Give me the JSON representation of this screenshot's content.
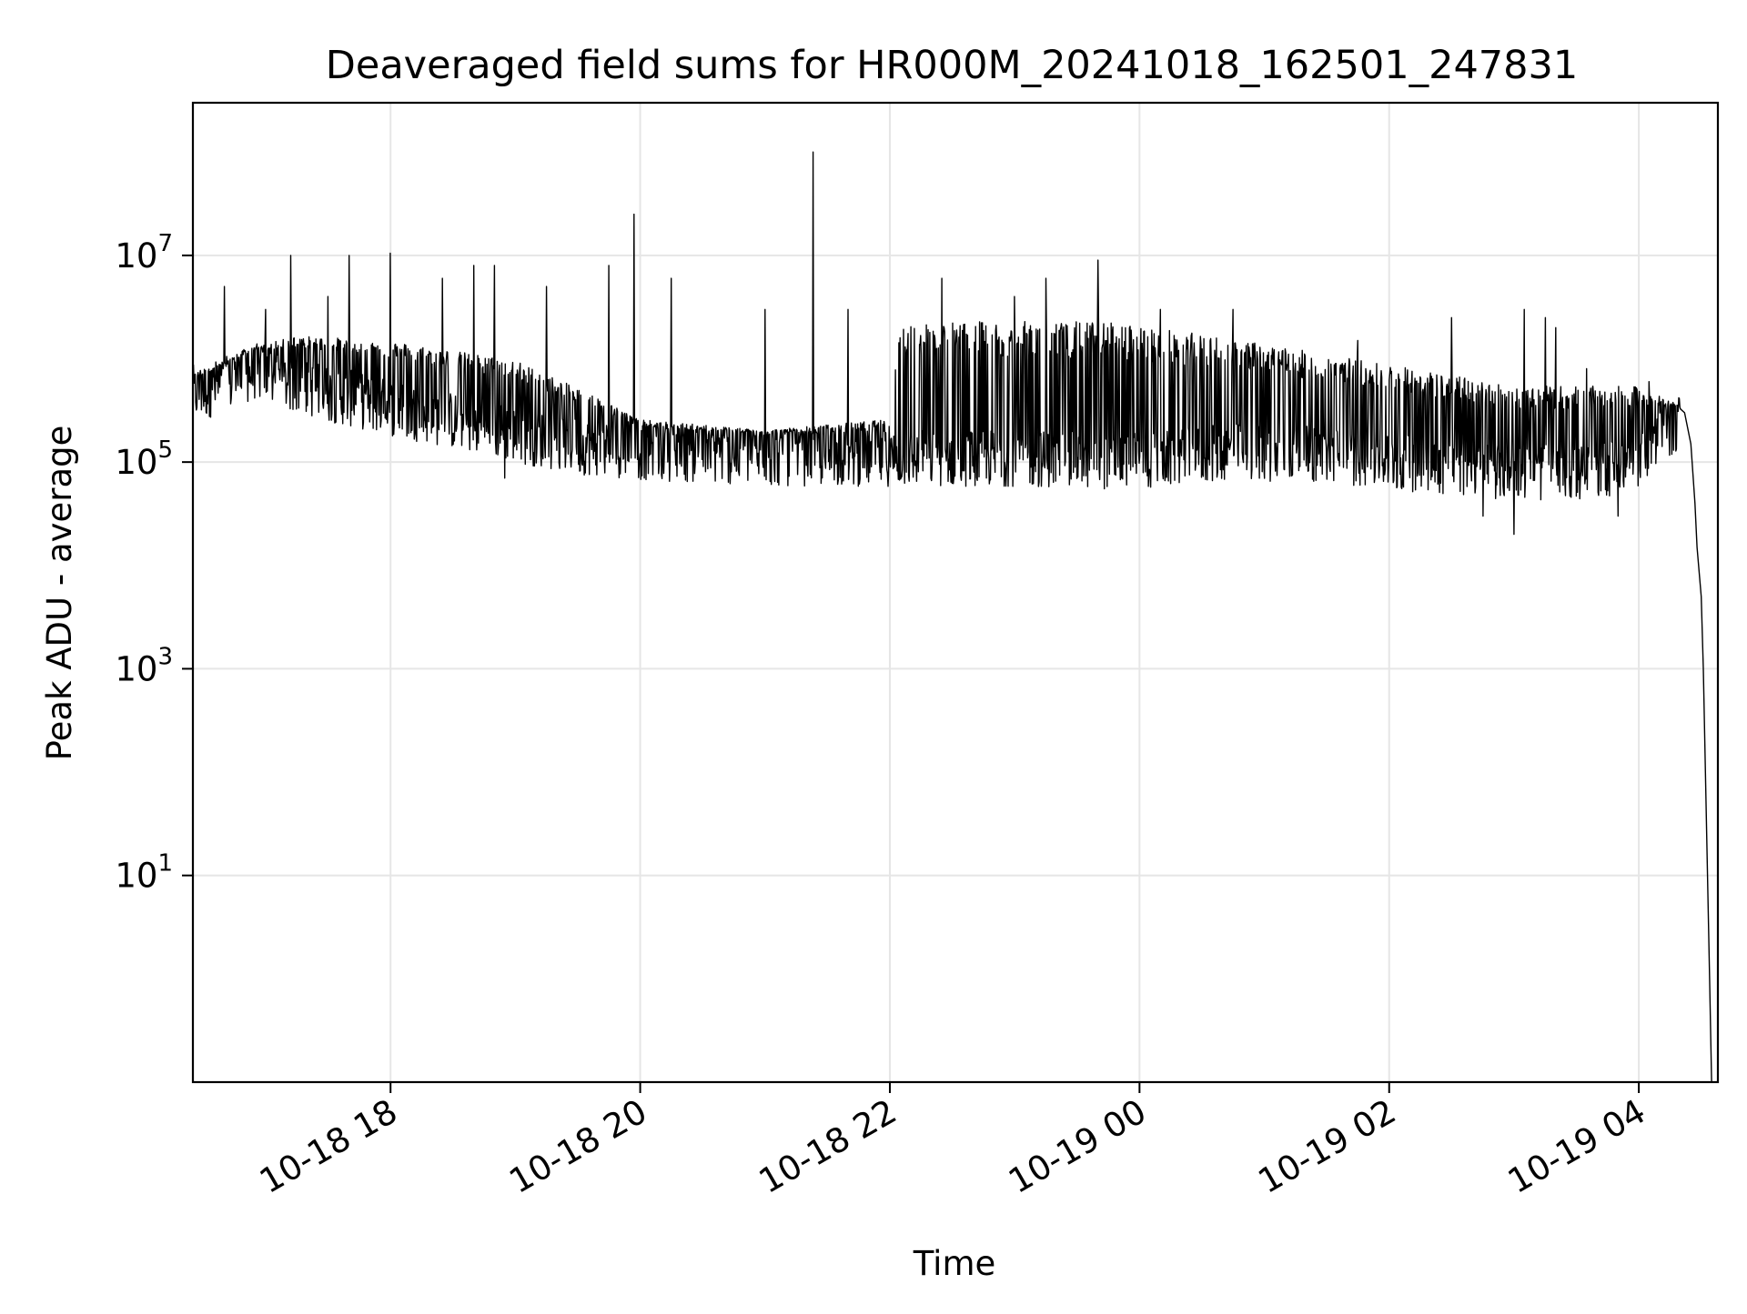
{
  "chart_data": {
    "type": "line",
    "title": "Deaveraged field sums for HR000M_20241018_162501_247831",
    "xlabel": "Time",
    "ylabel": "Peak ADU - average",
    "xlim": [
      "2024-10-18 16:25",
      "2024-10-19 04:38"
    ],
    "ylim": [
      0.1,
      300000000
    ],
    "y_scale": "log",
    "grid": true,
    "x_ticks": [
      {
        "value": "2024-10-18 18:00",
        "label": "10-18 18"
      },
      {
        "value": "2024-10-18 20:00",
        "label": "10-18 20"
      },
      {
        "value": "2024-10-18 22:00",
        "label": "10-18 22"
      },
      {
        "value": "2024-10-19 00:00",
        "label": "10-19 00"
      },
      {
        "value": "2024-10-19 02:00",
        "label": "10-19 02"
      },
      {
        "value": "2024-10-19 04:00",
        "label": "10-19 04"
      }
    ],
    "y_ticks": [
      {
        "value": 10,
        "base": "10",
        "exp": "1"
      },
      {
        "value": 1000,
        "base": "10",
        "exp": "3"
      },
      {
        "value": 100000,
        "base": "10",
        "exp": "5"
      },
      {
        "value": 10000000,
        "base": "10",
        "exp": "7"
      }
    ],
    "series": [
      {
        "color": "#000000",
        "baseline": [
          [
            "2024-10-18 16:25",
            550000
          ],
          [
            "2024-10-18 16:40",
            650000
          ],
          [
            "2024-10-18 16:55",
            900000
          ],
          [
            "2024-10-18 17:10",
            700000
          ],
          [
            "2024-10-18 17:30",
            550000
          ],
          [
            "2024-10-18 18:00",
            400000
          ],
          [
            "2024-10-18 18:30",
            300000
          ],
          [
            "2024-10-18 19:00",
            220000
          ],
          [
            "2024-10-18 19:30",
            170000
          ],
          [
            "2024-10-18 20:00",
            150000
          ],
          [
            "2024-10-18 21:00",
            130000
          ],
          [
            "2024-10-18 22:00",
            130000
          ],
          [
            "2024-10-18 23:00",
            130000
          ],
          [
            "2024-10-19 00:00",
            120000
          ],
          [
            "2024-10-19 00:45",
            150000
          ],
          [
            "2024-10-19 01:30",
            140000
          ],
          [
            "2024-10-19 02:00",
            120000
          ],
          [
            "2024-10-19 02:45",
            100000
          ],
          [
            "2024-10-19 03:30",
            90000
          ],
          [
            "2024-10-19 04:00",
            120000
          ],
          [
            "2024-10-19 04:15",
            250000
          ],
          [
            "2024-10-19 04:20",
            300000
          ]
        ],
        "upper_envelope": [
          [
            "2024-10-18 16:25",
            650000
          ],
          [
            "2024-10-18 16:50",
            1200000
          ],
          [
            "2024-10-18 17:15",
            1600000
          ],
          [
            "2024-10-18 18:00",
            1400000
          ],
          [
            "2024-10-18 19:00",
            900000
          ],
          [
            "2024-10-18 19:40",
            400000
          ],
          [
            "2024-10-18 20:00",
            250000
          ],
          [
            "2024-10-18 21:00",
            200000
          ],
          [
            "2024-10-18 22:00",
            250000
          ],
          [
            "2024-10-18 22:05",
            2000000
          ],
          [
            "2024-10-18 23:45",
            2000000
          ],
          [
            "2024-10-19 00:45",
            1400000
          ],
          [
            "2024-10-19 01:30",
            1000000
          ],
          [
            "2024-10-19 02:00",
            800000
          ],
          [
            "2024-10-19 03:00",
            500000
          ],
          [
            "2024-10-19 04:00",
            500000
          ],
          [
            "2024-10-19 04:20",
            350000
          ]
        ],
        "spikes": [
          [
            "2024-10-18 16:40",
            5000000
          ],
          [
            "2024-10-18 17:00",
            3000000
          ],
          [
            "2024-10-18 17:12",
            10000000
          ],
          [
            "2024-10-18 17:30",
            4000000
          ],
          [
            "2024-10-18 17:40",
            10000000
          ],
          [
            "2024-10-18 18:00",
            10500000
          ],
          [
            "2024-10-18 18:25",
            6000000
          ],
          [
            "2024-10-18 18:40",
            8000000
          ],
          [
            "2024-10-18 18:50",
            8000000
          ],
          [
            "2024-10-18 19:15",
            5000000
          ],
          [
            "2024-10-18 19:45",
            8000000
          ],
          [
            "2024-10-18 19:57",
            25000000
          ],
          [
            "2024-10-18 20:15",
            6000000
          ],
          [
            "2024-10-18 21:00",
            3000000
          ],
          [
            "2024-10-18 21:23",
            100000000
          ],
          [
            "2024-10-18 21:40",
            3000000
          ],
          [
            "2024-10-18 22:25",
            6000000
          ],
          [
            "2024-10-18 23:00",
            4000000
          ],
          [
            "2024-10-18 23:15",
            6000000
          ],
          [
            "2024-10-18 23:40",
            9000000
          ],
          [
            "2024-10-19 00:10",
            3000000
          ],
          [
            "2024-10-19 00:45",
            3000000
          ],
          [
            "2024-10-19 01:45",
            1500000
          ],
          [
            "2024-10-19 02:30",
            2500000
          ],
          [
            "2024-10-19 03:05",
            3000000
          ],
          [
            "2024-10-19 03:15",
            2500000
          ],
          [
            "2024-10-19 03:20",
            2000000
          ],
          [
            "2024-10-19 03:35",
            800000
          ],
          [
            "2024-10-19 04:05",
            600000
          ]
        ],
        "dips": [
          [
            "2024-10-18 18:55",
            70000
          ],
          [
            "2024-10-19 02:45",
            30000
          ],
          [
            "2024-10-19 03:00",
            20000
          ],
          [
            "2024-10-19 03:50",
            30000
          ]
        ],
        "tail": [
          [
            "2024-10-19 04:22",
            300000
          ],
          [
            "2024-10-19 04:25",
            150000
          ],
          [
            "2024-10-19 04:27",
            40000
          ],
          [
            "2024-10-19 04:28",
            15000
          ],
          [
            "2024-10-19 04:30",
            5000
          ],
          [
            "2024-10-19 04:31",
            1000
          ],
          [
            "2024-10-19 04:32",
            100
          ],
          [
            "2024-10-19 04:33",
            10
          ],
          [
            "2024-10-19 04:34",
            1
          ],
          [
            "2024-10-19 04:35",
            0.1
          ]
        ]
      }
    ]
  }
}
